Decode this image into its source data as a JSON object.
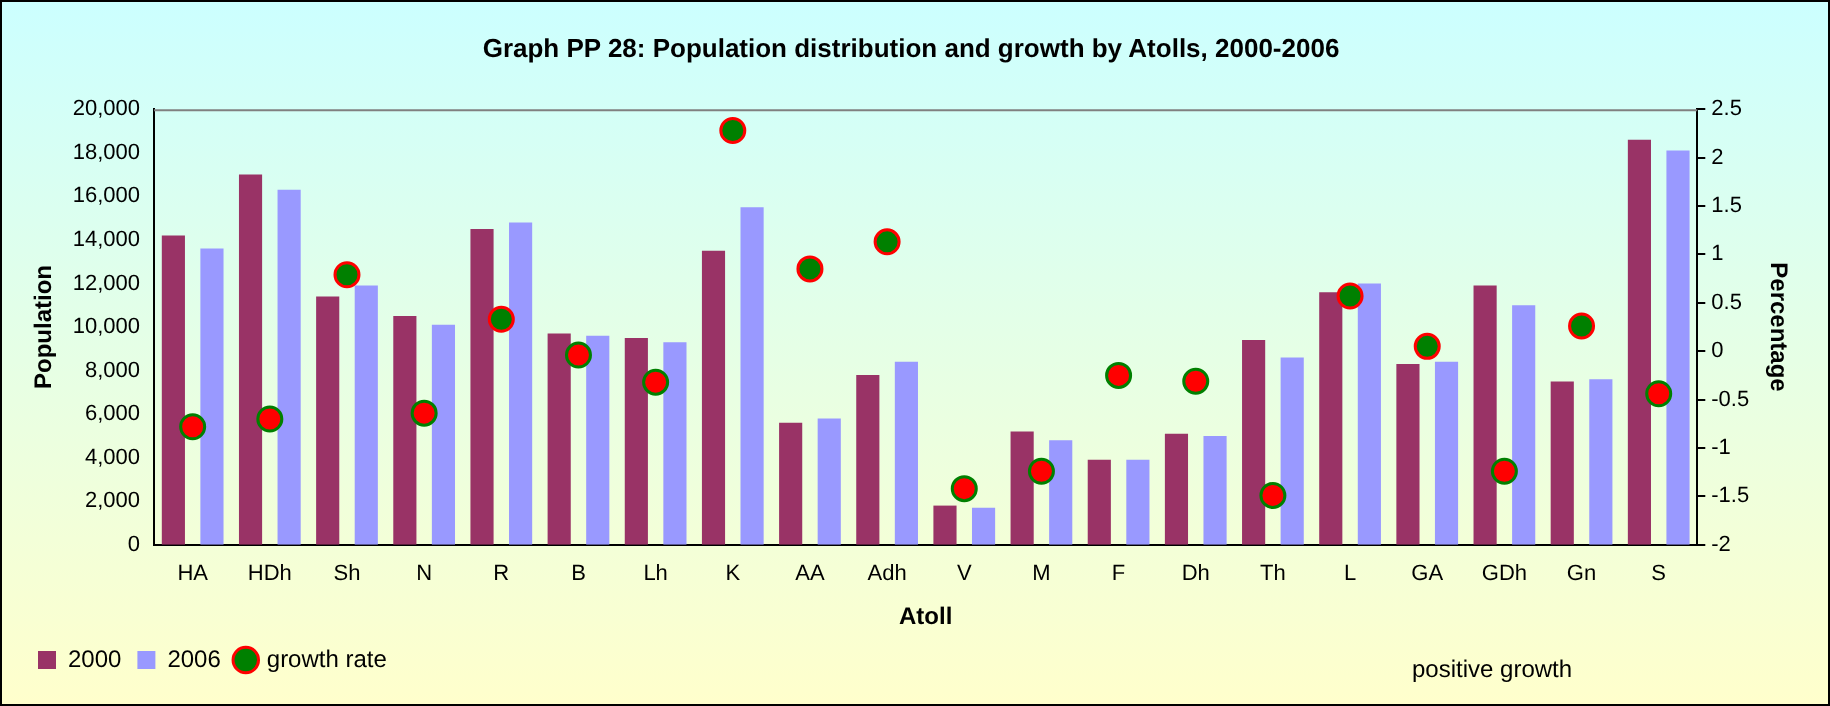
{
  "chart_data": {
    "type": "bar",
    "title": "Graph PP 28: Population distribution and growth by Atolls, 2000-2006",
    "xlabel": "Atoll",
    "ylabel": "Population",
    "y2label": "Percentage",
    "categories": [
      "HA",
      "HDh",
      "Sh",
      "N",
      "R",
      "B",
      "Lh",
      "K",
      "AA",
      "Adh",
      "V",
      "M",
      "F",
      "Dh",
      "Th",
      "L",
      "GA",
      "GDh",
      "Gn",
      "S"
    ],
    "series": [
      {
        "name": "2000",
        "color": "#993366",
        "values": [
          14200,
          17000,
          11400,
          10500,
          14500,
          9700,
          9500,
          13500,
          5600,
          7800,
          1800,
          5200,
          3900,
          5100,
          9400,
          11600,
          8300,
          11900,
          7500,
          18600
        ]
      },
      {
        "name": "2006",
        "color": "#9999ff",
        "values": [
          13600,
          16300,
          11900,
          10100,
          14800,
          9600,
          9300,
          15500,
          5800,
          8400,
          1700,
          4800,
          3900,
          5000,
          8600,
          12000,
          8400,
          11000,
          7600,
          18100
        ]
      },
      {
        "name": "growth rate",
        "type": "scatter",
        "axis": "y2",
        "marker": "circle",
        "color": "#008000",
        "colors": [
          "#ff0000",
          "#ff0000",
          "#008000",
          "#ff0000",
          "#008000",
          "#ff0000",
          "#ff0000",
          "#008000",
          "#008000",
          "#008000",
          "#ff0000",
          "#ff0000",
          "#ff0000",
          "#ff0000",
          "#ff0000",
          "#008000",
          "#008000",
          "#ff0000",
          "#008000",
          "#ff0000"
        ],
        "values": [
          -0.78,
          -0.7,
          0.79,
          -0.64,
          0.33,
          -0.04,
          -0.32,
          2.28,
          0.85,
          1.13,
          -1.42,
          -1.24,
          -0.25,
          -0.31,
          -1.49,
          0.57,
          0.05,
          -1.24,
          0.26,
          -0.44
        ]
      }
    ],
    "ylim": [
      0,
      20000
    ],
    "yticks": [
      {
        "value": 0,
        "label": "0"
      },
      {
        "value": 2000,
        "label": "2,000"
      },
      {
        "value": 4000,
        "label": "4,000"
      },
      {
        "value": 6000,
        "label": "6,000"
      },
      {
        "value": 8000,
        "label": "8,000"
      },
      {
        "value": 10000,
        "label": "10,000"
      },
      {
        "value": 12000,
        "label": "12,000"
      },
      {
        "value": 14000,
        "label": "14,000"
      },
      {
        "value": 16000,
        "label": "16,000"
      },
      {
        "value": 18000,
        "label": "18,000"
      },
      {
        "value": 20000,
        "label": "20,000"
      }
    ],
    "y2lim": [
      -2,
      2.5
    ],
    "y2ticks": [
      -2,
      -1.5,
      -1,
      -0.5,
      0,
      0.5,
      1,
      1.5,
      2,
      2.5
    ],
    "legend": "bottom",
    "grid": false,
    "annotations": [
      "positive growth"
    ]
  }
}
